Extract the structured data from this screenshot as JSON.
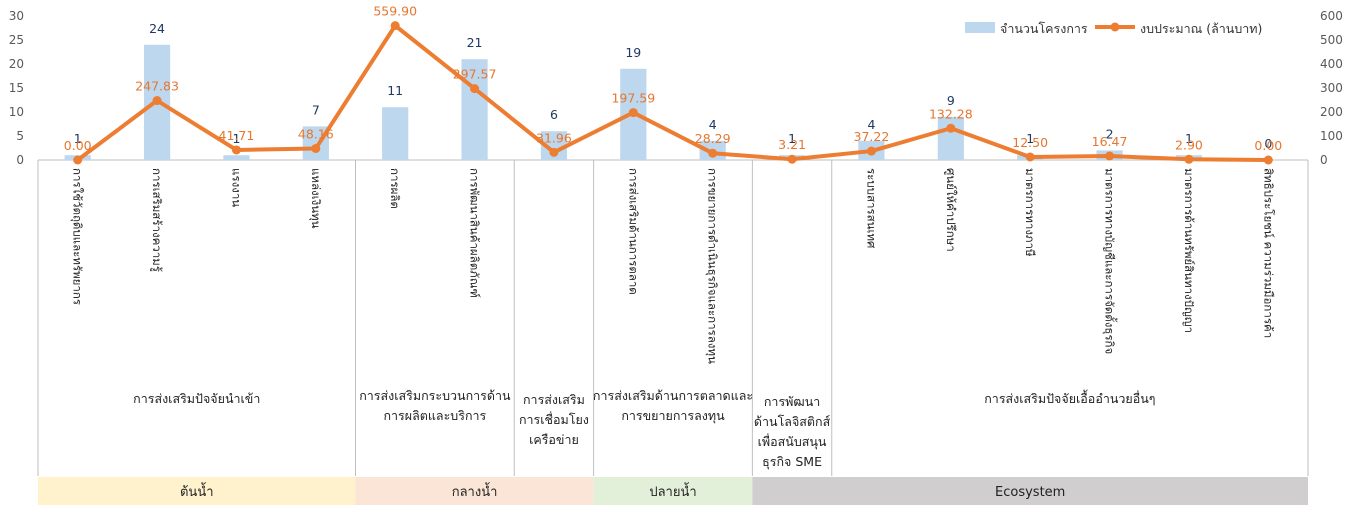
{
  "chart_data": {
    "type": "bar",
    "categories": [
      "การใช้วัตถุดิบและทรัพยากร",
      "การเสริมสร้างความรู้",
      "แรงงาน",
      "แหล่งเงินทุน",
      "การผลิต",
      "การพัฒนาสินค้าผลิตภัณฑ์",
      "",
      "การส่งเสริมด้านการตลาด",
      "การขยายการดำเนินธุรกิจและการลงทุน",
      "",
      "ระบบสารสนเทศ",
      "ศูนย์ให้คำปรึกษา",
      "มาตรการทางภาษี",
      "มาตรการทางบัญชีและการจัดตั้งธุรกิจ",
      "มาตรการด้านทรัพย์สินทางปัญญา",
      "สิทธิประโยชน์ ความร่วมมือการค้า"
    ],
    "series": [
      {
        "name": "จำนวนโครงการ",
        "type": "bar",
        "axis": "left",
        "color": "#bdd7ee",
        "values": [
          1,
          24,
          1,
          7,
          11,
          21,
          6,
          19,
          4,
          1,
          4,
          9,
          1,
          2,
          1,
          0
        ],
        "labels": [
          "1",
          "24",
          "1",
          "7",
          "11",
          "21",
          "6",
          "19",
          "4",
          "1",
          "4",
          "9",
          "1",
          "2",
          "1",
          "0"
        ]
      },
      {
        "name": "งบประมาณ (ล้านบาท)",
        "type": "line",
        "axis": "right",
        "color": "#ed7d31",
        "values": [
          0.0,
          247.83,
          41.71,
          48.16,
          559.9,
          297.57,
          31.96,
          197.59,
          28.29,
          3.21,
          37.22,
          132.28,
          12.5,
          16.47,
          2.9,
          0.0
        ],
        "labels": [
          "0.00",
          "247.83",
          "41.71",
          "48.16",
          "559.90",
          "297.57",
          "31.96",
          "197.59",
          "28.29",
          "3.21",
          "37.22",
          "132.28",
          "12.50",
          "16.47",
          "2.90",
          "0.00"
        ]
      }
    ],
    "ylim_left": [
      0,
      30
    ],
    "yticks_left": [
      "0",
      "5",
      "10",
      "15",
      "20",
      "25",
      "30"
    ],
    "ylim_right": [
      0,
      600
    ],
    "yticks_right": [
      "0",
      "100",
      "200",
      "300",
      "400",
      "500",
      "600"
    ],
    "legend_position": "top-right",
    "groups": [
      {
        "label_lines": [
          "การส่งเสริมปัจจัยนำเข้า"
        ]
      },
      {
        "label_lines": [
          "การส่งเสริมกระบวนการด้าน",
          "การผลิตและบริการ"
        ]
      },
      {
        "label_lines": [
          "การส่งเสริม",
          "การเชื่อมโยง",
          "เครือข่าย"
        ]
      },
      {
        "label_lines": [
          "การส่งเสริมด้านการตลาดและ",
          "การขยายการลงทุน"
        ]
      },
      {
        "label_lines": [
          "การพัฒนา",
          "ด้านโลจิสติกส์",
          "เพื่อสนับสนุน",
          "ธุรกิจ SME"
        ]
      },
      {
        "label_lines": [
          "การส่งเสริมปัจจัยเอื้ออำนวยอื่นๆ"
        ]
      }
    ],
    "bands": [
      {
        "label": "ต้นน้ำ",
        "color": "#fff2cc"
      },
      {
        "label": "กลางน้ำ",
        "color": "#fbe5d6"
      },
      {
        "label": "ปลายน้ำ",
        "color": "#e2f0d9"
      },
      {
        "label": "Ecosystem",
        "color": "#d0cece"
      }
    ]
  }
}
